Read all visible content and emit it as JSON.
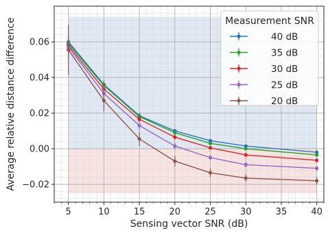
{
  "chart_data": {
    "type": "line",
    "title": "",
    "xlabel": "Sensing vector SNR (dB)",
    "ylabel": "Average relative distance difference",
    "xlim": [
      3,
      41
    ],
    "ylim": [
      -0.03,
      0.08
    ],
    "x": [
      5,
      10,
      15,
      20,
      25,
      30,
      40
    ],
    "xticks": [
      5,
      10,
      15,
      20,
      25,
      30,
      35,
      40
    ],
    "yticks": [
      -0.02,
      0.0,
      0.02,
      0.04,
      0.06
    ],
    "ytick_labels": [
      "−0.02",
      "0.00",
      "0.02",
      "0.04",
      "0.06"
    ],
    "grid": true,
    "minor_grid": true,
    "error_bars": true,
    "legend": {
      "title": "Measurement SNR",
      "placement": "top-right"
    },
    "shaded_regions": [
      {
        "name": "positive-region",
        "y_range": [
          0.0,
          0.074
        ],
        "x_range": [
          5,
          40
        ],
        "color": "#d6e2ef"
      },
      {
        "name": "negative-region",
        "y_range": [
          -0.025,
          0.0
        ],
        "x_range": [
          5,
          40
        ],
        "color": "#f6d9d9"
      }
    ],
    "series": [
      {
        "name": "40 dB",
        "color": "#1f77b4",
        "values": [
          0.06,
          0.036,
          0.0185,
          0.01,
          0.0045,
          0.0015,
          -0.002
        ],
        "errors": [
          0.003,
          0.002,
          0.0015,
          0.001,
          0.001,
          0.001,
          0.001
        ]
      },
      {
        "name": "35 dB",
        "color": "#2ca02c",
        "values": [
          0.059,
          0.0355,
          0.018,
          0.009,
          0.003,
          0.0,
          -0.0035
        ],
        "errors": [
          0.004,
          0.003,
          0.0018,
          0.0012,
          0.001,
          0.001,
          0.001
        ]
      },
      {
        "name": "30 dB",
        "color": "#d62728",
        "values": [
          0.058,
          0.0335,
          0.0165,
          0.0065,
          0.0005,
          -0.0035,
          -0.0065
        ],
        "errors": [
          0.005,
          0.0035,
          0.002,
          0.0015,
          0.0012,
          0.0012,
          0.0012
        ]
      },
      {
        "name": "25 dB",
        "color": "#9467bd",
        "values": [
          0.057,
          0.031,
          0.013,
          0.0015,
          -0.005,
          -0.009,
          -0.011
        ],
        "errors": [
          0.006,
          0.0045,
          0.0025,
          0.002,
          0.0015,
          0.0015,
          0.0015
        ]
      },
      {
        "name": "20 dB",
        "color": "#8c564b",
        "values": [
          0.0555,
          0.027,
          0.0055,
          -0.007,
          -0.0135,
          -0.0165,
          -0.018
        ],
        "errors": [
          0.014,
          0.006,
          0.004,
          0.003,
          0.0025,
          0.002,
          0.002
        ]
      }
    ]
  }
}
